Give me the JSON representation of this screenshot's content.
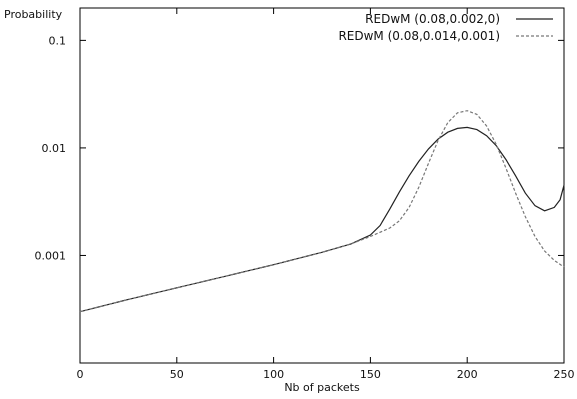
{
  "chart_data": {
    "type": "line",
    "title": "",
    "xlabel": "Nb of packets",
    "ylabel": "Probability",
    "xlim": [
      0,
      250
    ],
    "ylim": [
      0.0001,
      0.2
    ],
    "yscale": "log",
    "grid": false,
    "legend_position": "top-right",
    "x_ticks": [
      0,
      50,
      100,
      150,
      200,
      250
    ],
    "x_tick_labels": [
      "0",
      "50",
      "100",
      "150",
      "200",
      "250"
    ],
    "y_ticks": [
      0.001,
      0.01,
      0.1
    ],
    "y_tick_labels": [
      "0.001",
      "0.01",
      "0.1"
    ],
    "series": [
      {
        "name": "REDwM (0.08,0.002,0)",
        "color": "#222222",
        "style": "solid",
        "x": [
          0,
          25,
          50,
          75,
          100,
          125,
          140,
          150,
          155,
          160,
          165,
          170,
          175,
          180,
          185,
          190,
          195,
          200,
          205,
          210,
          215,
          220,
          225,
          230,
          235,
          240,
          245,
          248,
          250
        ],
        "y": [
          0.0003,
          0.00039,
          0.0005,
          0.00064,
          0.00082,
          0.00107,
          0.00128,
          0.00155,
          0.0019,
          0.0027,
          0.0039,
          0.0055,
          0.0075,
          0.0098,
          0.0121,
          0.014,
          0.0152,
          0.0155,
          0.0148,
          0.013,
          0.0105,
          0.0078,
          0.0055,
          0.0038,
          0.0029,
          0.0026,
          0.0028,
          0.0033,
          0.0045
        ]
      },
      {
        "name": "REDwM (0.08,0.014,0.001)",
        "color": "#777777",
        "style": "dashed",
        "x": [
          0,
          25,
          50,
          75,
          100,
          125,
          140,
          150,
          160,
          165,
          170,
          175,
          180,
          185,
          190,
          195,
          200,
          205,
          210,
          215,
          220,
          225,
          230,
          235,
          240,
          245,
          250
        ],
        "y": [
          0.0003,
          0.00039,
          0.0005,
          0.00064,
          0.00082,
          0.00107,
          0.00128,
          0.0015,
          0.0018,
          0.0021,
          0.0028,
          0.0043,
          0.0072,
          0.0118,
          0.0172,
          0.0212,
          0.0222,
          0.0205,
          0.016,
          0.0108,
          0.0065,
          0.0038,
          0.0023,
          0.0015,
          0.0011,
          0.0009,
          0.00078
        ]
      }
    ]
  }
}
